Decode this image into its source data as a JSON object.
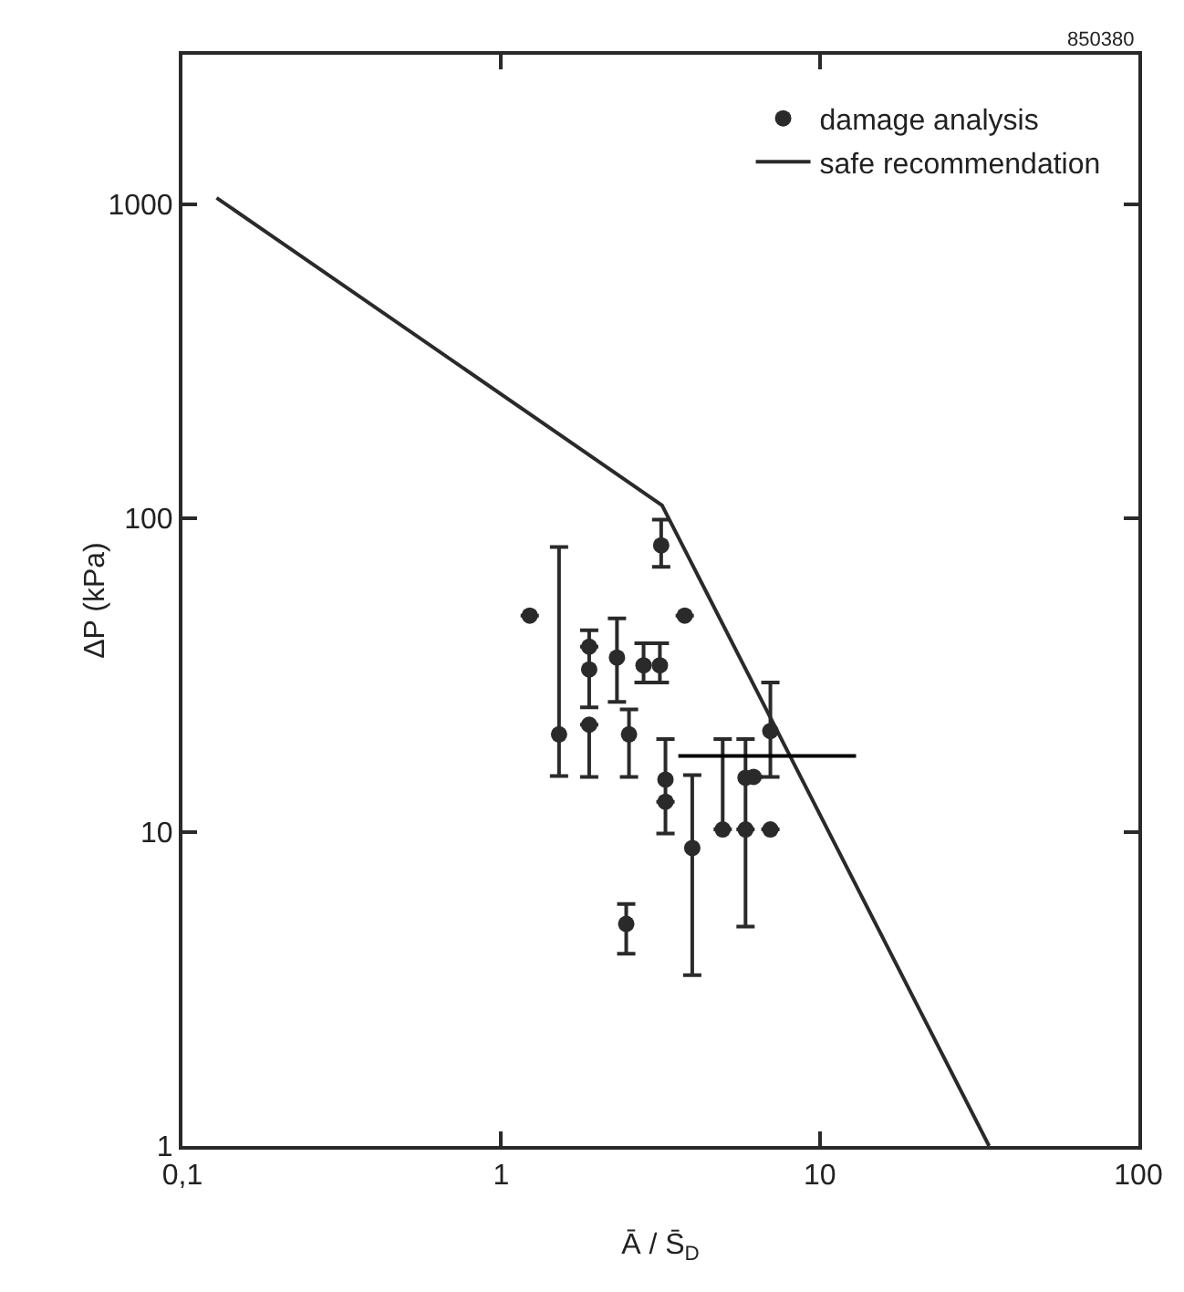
{
  "chart_data": {
    "type": "scatter",
    "xlabel": "Ā / S̄$_{D}$",
    "ylabel": "ΔP (kPa)",
    "annotations": [
      "850380"
    ],
    "log": "xy",
    "xlim": [
      0.1,
      100
    ],
    "ylim": [
      1,
      3000
    ],
    "xticks": [
      {
        "value": 0.1,
        "label": "0,1"
      },
      1,
      10,
      100
    ],
    "yticks": [
      1,
      10,
      100,
      1000
    ],
    "grid": false,
    "legend": "top right",
    "marker": "circle",
    "series": [
      {
        "name": "damage analysis",
        "color": "#2a2a2a",
        "x": [
          1.23,
          1.52,
          1.89,
          1.89,
          1.89,
          2.31,
          2.52,
          2.8,
          3.15,
          3.18,
          3.77,
          2.47,
          3.28,
          3.28,
          3.98,
          4.96,
          5.85,
          5.85,
          6.2,
          7.0,
          7.0
        ],
        "values": [
          49,
          20.5,
          33,
          39,
          22,
          36,
          20.5,
          34,
          34,
          82,
          49,
          5.1,
          14.7,
          12.5,
          8.9,
          10.2,
          14.9,
          10.2,
          15,
          21,
          10.2
        ],
        "errors": [
          null,
          [
            15.1,
            81
          ],
          [
            25,
            44
          ],
          null,
          [
            15,
            22
          ],
          [
            26,
            48
          ],
          [
            15,
            24.6
          ],
          [
            30,
            40
          ],
          [
            30,
            40
          ],
          [
            70,
            99
          ],
          null,
          [
            4.1,
            5.9
          ],
          [
            9.9,
            19.8
          ],
          null,
          [
            3.5,
            15.2
          ],
          [
            10.2,
            19.8
          ],
          [
            5,
            19.8
          ],
          null,
          null,
          [
            15,
            30
          ],
          null
        ]
      },
      {
        "name": "safe recommendation",
        "type": "line",
        "color": "#2a2a2a",
        "line_style": "solid",
        "marker": "none",
        "x": [
          0.128,
          3.2,
          34
        ],
        "values": [
          1050,
          110,
          1
        ]
      },
      {
        "type": "line",
        "color": "#000000",
        "line_style": "solid",
        "marker": "none",
        "x": [
          3.6,
          13
        ],
        "values": [
          17.5,
          17.5
        ]
      }
    ]
  }
}
